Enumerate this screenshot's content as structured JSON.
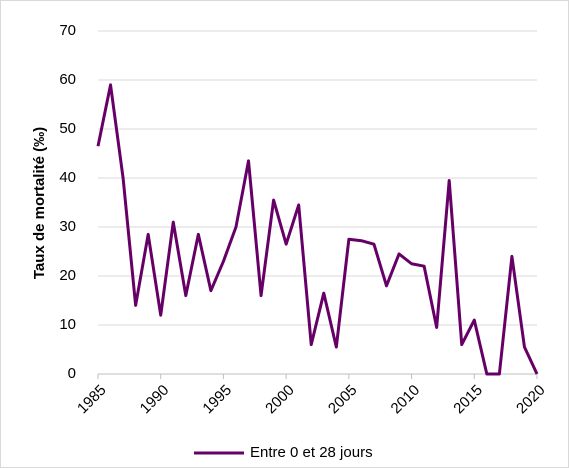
{
  "chart_data": {
    "type": "line",
    "y_label": "Taux de mortalité (‰)",
    "x": [
      1985,
      1986,
      1987,
      1988,
      1989,
      1990,
      1991,
      1992,
      1993,
      1994,
      1995,
      1996,
      1997,
      1998,
      1999,
      2000,
      2001,
      2002,
      2003,
      2004,
      2005,
      2006,
      2007,
      2008,
      2009,
      2010,
      2011,
      2012,
      2013,
      2014,
      2015,
      2016,
      2017,
      2018,
      2019,
      2020
    ],
    "series": [
      {
        "name": "Entre 0 et 28 jours",
        "color": "#660066",
        "values": [
          46.5,
          59,
          40,
          14,
          28.5,
          12,
          31,
          16,
          28.5,
          17,
          23,
          30,
          43.5,
          16,
          35.5,
          26.5,
          34.5,
          6,
          16.5,
          5.5,
          27.5,
          27.2,
          26.5,
          18,
          24.5,
          22.5,
          22,
          9.5,
          39.5,
          6,
          11,
          0,
          0,
          24,
          5.5,
          0
        ]
      }
    ],
    "xlim": [
      1985,
      2020
    ],
    "xticks": [
      1985,
      1990,
      1995,
      2000,
      2005,
      2010,
      2015,
      2020
    ],
    "ylim": [
      0,
      70
    ],
    "yticks": [
      0,
      10,
      20,
      30,
      40,
      50,
      60,
      70
    ],
    "grid": true
  }
}
